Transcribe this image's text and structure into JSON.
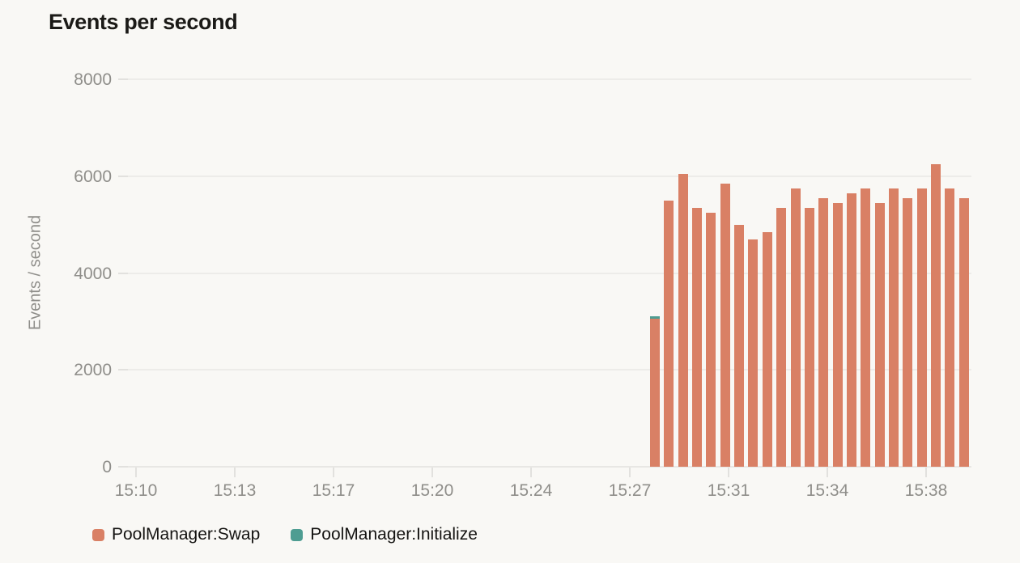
{
  "chart": {
    "background_color": "#F9F8F5",
    "gridline_color": "#EDECE9",
    "axis_text_color": "#8F8E8A",
    "title_color": "#1B1A17"
  },
  "chart_data": {
    "type": "bar",
    "stacked": true,
    "title": "Events per second",
    "xlabel": "",
    "ylabel": "Events / second",
    "ylim": [
      0,
      8000
    ],
    "yticks": [
      0,
      2000,
      4000,
      6000,
      8000
    ],
    "xticks": [
      "15:10",
      "15:13",
      "15:17",
      "15:20",
      "15:24",
      "15:27",
      "15:31",
      "15:34",
      "15:38"
    ],
    "grid": "horizontal",
    "legend_position": "bottom-left",
    "x": [
      "15:28:00",
      "15:28:30",
      "15:29:00",
      "15:29:30",
      "15:30:00",
      "15:30:30",
      "15:31:00",
      "15:31:30",
      "15:32:00",
      "15:32:30",
      "15:33:00",
      "15:33:30",
      "15:34:00",
      "15:34:30",
      "15:35:00",
      "15:35:30",
      "15:36:00",
      "15:36:30",
      "15:37:00",
      "15:37:30",
      "15:38:00",
      "15:38:30",
      "15:39:00"
    ],
    "series": [
      {
        "name": "PoolManager:Swap",
        "color": "#D98065",
        "values": [
          3050,
          5500,
          6050,
          5350,
          5250,
          5850,
          5000,
          4700,
          4850,
          5350,
          5750,
          5350,
          5550,
          5450,
          5650,
          5750,
          5450,
          5750,
          5550,
          5750,
          6250,
          5750,
          5550
        ]
      },
      {
        "name": "PoolManager:Initialize",
        "color": "#4E9D92",
        "values": [
          50,
          0,
          0,
          0,
          0,
          0,
          0,
          0,
          0,
          0,
          0,
          0,
          0,
          0,
          0,
          0,
          0,
          0,
          0,
          0,
          0,
          0,
          0
        ]
      }
    ]
  }
}
